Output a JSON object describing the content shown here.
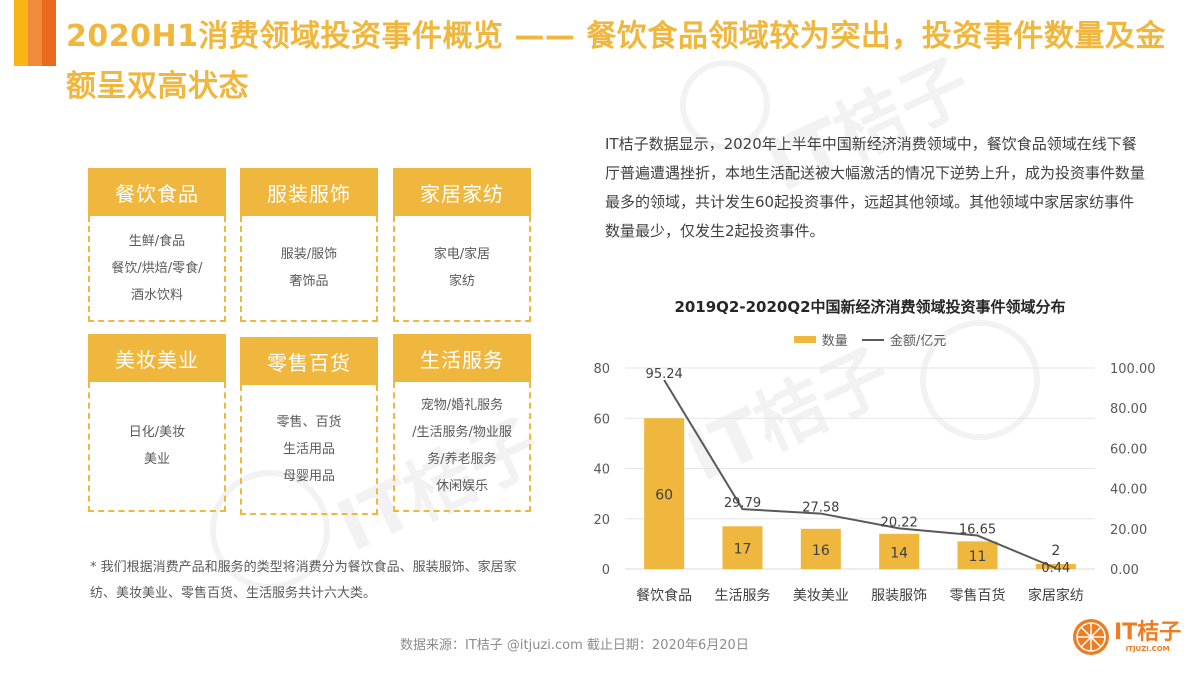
{
  "header": {
    "accent_colors": [
      "#FBB416",
      "#F08A3C",
      "#E96A1C"
    ],
    "title": "2020H1消费领域投资事件概览 —— 餐饮食品领域较为突出，投资事件数量及金额呈双高状态",
    "title_color": "#EFB73E"
  },
  "categories": [
    {
      "name": "餐饮食品",
      "items": [
        "生鲜/食品",
        "餐饮/烘焙/零食/",
        "酒水饮料"
      ]
    },
    {
      "name": "服装服饰",
      "items": [
        "服装/服饰",
        "奢饰品"
      ]
    },
    {
      "name": "家居家纺",
      "items": [
        "家电/家居",
        "家纺"
      ]
    },
    {
      "name": "美妆美业",
      "items": [
        "日化/美妆",
        "美业"
      ]
    },
    {
      "name": "零售百货",
      "items": [
        "零售、百货",
        "生活用品",
        "母婴用品"
      ]
    },
    {
      "name": "生活服务",
      "items": [
        "宠物/婚礼服务",
        "/生活服务/物业服",
        "务/养老服务",
        "休闲娱乐"
      ]
    }
  ],
  "footnote": "* 我们根据消费产品和服务的类型将消费分为餐饮食品、服装服饰、家居家纺、美妆美业、零售百货、生活服务共计六大类。",
  "description": "IT桔子数据显示，2020年上半年中国新经济消费领域中，餐饮食品领域在线下餐厅普遍遭遇挫折，本地生活配送被大幅激活的情况下逆势上升，成为投资事件数量最多的领域，共计发生60起投资事件，远超其他领域。其他领域中家居家纺事件数量最少，仅发生2起投资事件。",
  "chart_data": {
    "type": "bar",
    "title": "2019Q2-2020Q2中国新经济消费领域投资事件领域分布",
    "categories": [
      "餐饮食品",
      "生活服务",
      "美妆美业",
      "服装服饰",
      "零售百货",
      "家居家纺"
    ],
    "series": [
      {
        "name": "数量",
        "type": "bar",
        "axis": "left",
        "color": "#EFB73E",
        "values": [
          60,
          17,
          16,
          14,
          11,
          2
        ]
      },
      {
        "name": "金额/亿元",
        "type": "line",
        "axis": "right",
        "color": "#595959",
        "values": [
          95.24,
          29.79,
          27.58,
          20.22,
          16.65,
          0.44
        ]
      }
    ],
    "y_left": {
      "min": 0,
      "max": 80,
      "ticks": [
        "0",
        "20",
        "40",
        "60",
        "80"
      ]
    },
    "y_right": {
      "min": 0,
      "max": 100,
      "ticks": [
        "0.00",
        "20.00",
        "40.00",
        "60.00",
        "80.00",
        "100.00"
      ]
    },
    "legend": [
      "数量",
      "金额/亿元"
    ],
    "legend_position": "top",
    "grid": true,
    "xlabel": "",
    "ylabel": ""
  },
  "source": "数据来源：IT桔子 @itjuzi.com  截止日期：2020年6月20日",
  "logo": {
    "main": "IT桔子",
    "sub": "ITJUZI.COM",
    "color": "#F07C21"
  },
  "watermark": "IT桔子"
}
